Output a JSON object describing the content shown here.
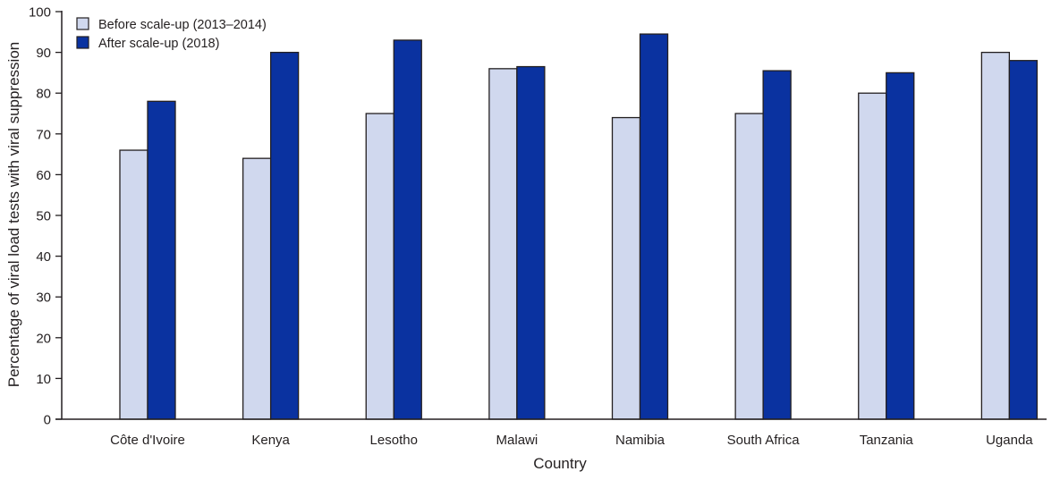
{
  "chart_data": {
    "type": "bar",
    "title": "",
    "xlabel": "Country",
    "ylabel": "Percentage of viral load tests with viral suppression",
    "ylim": [
      0,
      100
    ],
    "yticks": [
      0,
      10,
      20,
      30,
      40,
      50,
      60,
      70,
      80,
      90,
      100
    ],
    "grid": false,
    "legend_position": "top-left",
    "categories": [
      "Côte d'Ivoire",
      "Kenya",
      "Lesotho",
      "Malawi",
      "Namibia",
      "South Africa",
      "Tanzania",
      "Uganda"
    ],
    "series": [
      {
        "name": "Before scale-up (2013–2014)",
        "color": "#d0d8ee",
        "values": [
          66,
          64,
          75,
          86,
          74,
          75,
          80,
          90
        ]
      },
      {
        "name": "After scale-up (2018)",
        "color": "#0a32a0",
        "values": [
          78,
          90,
          93,
          86.5,
          94.5,
          85.5,
          85,
          88
        ]
      }
    ]
  }
}
